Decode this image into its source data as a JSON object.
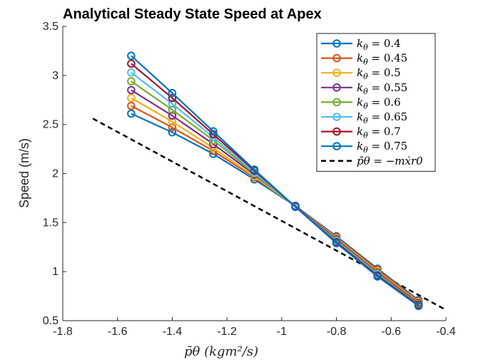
{
  "chart_data": {
    "type": "line",
    "title": "Analytical Steady State Speed at Apex",
    "xlabel": "p̄θ (kgm²/s)",
    "ylabel": "Speed (m/s)",
    "xlim": [
      -1.8,
      -0.4
    ],
    "ylim": [
      0.5,
      3.5
    ],
    "xticks": [
      -1.8,
      -1.6,
      -1.4,
      -1.2,
      -1,
      -0.8,
      -0.6,
      -0.4
    ],
    "xtick_labels": [
      "-1.8",
      "-1.6",
      "-1.4",
      "-1.2",
      "-1",
      "-0.8",
      "-0.6",
      "-0.4"
    ],
    "yticks": [
      0.5,
      1,
      1.5,
      2,
      2.5,
      3,
      3.5
    ],
    "ytick_labels": [
      "0.5",
      "1",
      "1.5",
      "2",
      "2.5",
      "3",
      "3.5"
    ],
    "grid": false,
    "legend_position": "top-right",
    "x": [
      -1.55,
      -1.4,
      -1.25,
      -1.1,
      -0.95,
      -0.8,
      -0.65,
      -0.5
    ],
    "series": [
      {
        "name": "kθ = 0.4",
        "legend_sub": "θ",
        "legend_value": "0.4",
        "color": "#0072BD",
        "values": [
          2.61,
          2.42,
          2.2,
          1.94,
          1.67,
          1.36,
          1.03,
          0.71
        ]
      },
      {
        "name": "kθ = 0.45",
        "legend_sub": "θ",
        "legend_value": "0.45",
        "color": "#D95319",
        "values": [
          2.69,
          2.47,
          2.23,
          1.96,
          1.67,
          1.35,
          1.02,
          0.7
        ]
      },
      {
        "name": "kθ = 0.5",
        "legend_sub": "θ",
        "legend_value": "0.5",
        "color": "#EDB120",
        "values": [
          2.77,
          2.53,
          2.26,
          1.97,
          1.67,
          1.34,
          1.0,
          0.69
        ]
      },
      {
        "name": "kθ = 0.55",
        "legend_sub": "θ",
        "legend_value": "0.55",
        "color": "#7E2F8E",
        "values": [
          2.85,
          2.59,
          2.3,
          1.99,
          1.67,
          1.33,
          0.99,
          0.68
        ]
      },
      {
        "name": "kθ = 0.6",
        "legend_sub": "θ",
        "legend_value": "0.6",
        "color": "#77AC30",
        "values": [
          2.94,
          2.65,
          2.34,
          2.0,
          1.66,
          1.32,
          0.98,
          0.67
        ]
      },
      {
        "name": "kθ = 0.65",
        "legend_sub": "θ",
        "legend_value": "0.65",
        "color": "#4DBEEE",
        "values": [
          3.03,
          2.71,
          2.37,
          2.01,
          1.66,
          1.31,
          0.97,
          0.66
        ]
      },
      {
        "name": "kθ = 0.7",
        "legend_sub": "θ",
        "legend_value": "0.7",
        "color": "#A2142F",
        "values": [
          3.12,
          2.77,
          2.4,
          2.03,
          1.66,
          1.3,
          0.96,
          0.66
        ]
      },
      {
        "name": "kθ = 0.75",
        "legend_sub": "θ",
        "legend_value": "0.75",
        "color": "#0072BD",
        "values": [
          3.2,
          2.82,
          2.43,
          2.04,
          1.66,
          1.29,
          0.95,
          0.65
        ]
      }
    ],
    "reference_line": {
      "name": "p̄θ = −mẋr0",
      "color": "#000000",
      "dash": "dashed",
      "x": [
        -1.69,
        -0.4
      ],
      "values": [
        2.56,
        0.61
      ]
    }
  }
}
